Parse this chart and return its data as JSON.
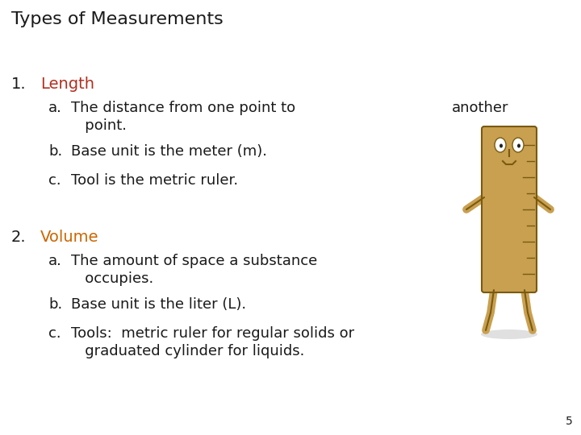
{
  "title": "Types of Measurements",
  "title_color": "#1a1a1a",
  "title_fontsize": 16,
  "background_color": "#ffffff",
  "items": [
    {
      "number": "1.",
      "heading": "Length",
      "heading_color": "#b03020",
      "lines": [
        {
          "indent": "a.",
          "text1": "The distance from one point to",
          "text2": "another",
          "continuation": "   point.",
          "multiline": true
        },
        {
          "indent": "b.",
          "text1": "Base unit is the meter (m).",
          "text2": "",
          "continuation": "",
          "multiline": false
        },
        {
          "indent": "c.",
          "text1": "Tool is the metric ruler.",
          "text2": "",
          "continuation": "",
          "multiline": false
        }
      ]
    },
    {
      "number": "2.",
      "heading": "Volume",
      "heading_color": "#cc6600",
      "lines": [
        {
          "indent": "a.",
          "text1": "The amount of space a substance",
          "text2": "",
          "continuation": "   occupies.",
          "multiline": true
        },
        {
          "indent": "b.",
          "text1": "Base unit is the liter (L).",
          "text2": "",
          "continuation": "",
          "multiline": false
        },
        {
          "indent": "c.",
          "text1": "Tools:  metric ruler for regular solids or",
          "text2": "",
          "continuation": "   graduated cylinder for liquids.",
          "multiline": true
        }
      ]
    }
  ],
  "page_number": "5",
  "text_color": "#1a1a1a",
  "body_fontsize": 13,
  "heading_fontsize": 14,
  "ruler_color": "#c8a050",
  "ruler_dark": "#7a5a10"
}
